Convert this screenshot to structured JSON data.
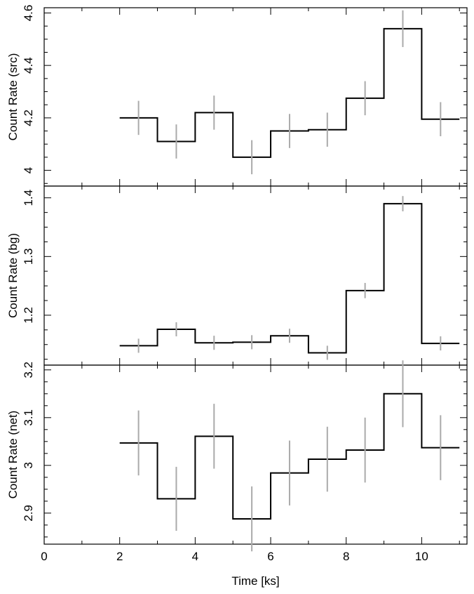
{
  "chart_data": [
    {
      "type": "line",
      "step": true,
      "ylabel": "Count Rate (src)",
      "xlabel": "",
      "xlim": [
        0,
        11.2
      ],
      "ylim": [
        3.94,
        4.62
      ],
      "yticks": [
        4,
        4.2,
        4.4,
        4.6
      ],
      "yticklabels": [
        "4",
        "4.2",
        "4.4",
        "4.6"
      ],
      "x_bin_centers": [
        2.5,
        3.5,
        4.5,
        5.5,
        6.5,
        7.5,
        8.5,
        9.5,
        10.5
      ],
      "bin_width": 1,
      "values": [
        4.2,
        4.11,
        4.22,
        4.05,
        4.15,
        4.155,
        4.275,
        4.54,
        4.195
      ],
      "errors": [
        0.065,
        0.065,
        0.065,
        0.065,
        0.065,
        0.065,
        0.065,
        0.07,
        0.065
      ],
      "line_color": "#000000",
      "errorbar_color": "#aaaaaa"
    },
    {
      "type": "line",
      "step": true,
      "ylabel": "Count Rate (bg)",
      "xlabel": "",
      "xlim": [
        0,
        11.2
      ],
      "ylim": [
        1.115,
        1.42
      ],
      "yticks": [
        1.2,
        1.3,
        1.4
      ],
      "yticklabels": [
        "1.2",
        "1.3",
        "1.4"
      ],
      "x_bin_centers": [
        2.5,
        3.5,
        4.5,
        5.5,
        6.5,
        7.5,
        8.5,
        9.5,
        10.5
      ],
      "bin_width": 1,
      "values": [
        1.148,
        1.176,
        1.153,
        1.154,
        1.165,
        1.136,
        1.242,
        1.39,
        1.152
      ],
      "errors": [
        0.012,
        0.012,
        0.012,
        0.012,
        0.012,
        0.012,
        0.013,
        0.013,
        0.012
      ],
      "line_color": "#000000",
      "errorbar_color": "#aaaaaa"
    },
    {
      "type": "line",
      "step": true,
      "ylabel": "Count Rate (net)",
      "xlabel": "Time [ks]",
      "xlim": [
        0,
        11.2
      ],
      "ylim": [
        2.835,
        3.21
      ],
      "yticks": [
        2.9,
        3,
        3.1,
        3.2
      ],
      "yticklabels": [
        "2.9",
        "3",
        "3.1",
        "3.2"
      ],
      "xticks": [
        0,
        2,
        4,
        6,
        8,
        10
      ],
      "xticklabels": [
        "0",
        "2",
        "4",
        "6",
        "8",
        "10"
      ],
      "x_bin_centers": [
        2.5,
        3.5,
        4.5,
        5.5,
        6.5,
        7.5,
        8.5,
        9.5,
        10.5
      ],
      "bin_width": 1,
      "values": [
        3.047,
        2.93,
        3.061,
        2.888,
        2.984,
        3.013,
        3.032,
        3.15,
        3.037
      ],
      "errors": [
        0.068,
        0.067,
        0.068,
        0.068,
        0.068,
        0.068,
        0.068,
        0.07,
        0.068
      ],
      "line_color": "#000000",
      "errorbar_color": "#aaaaaa"
    }
  ]
}
